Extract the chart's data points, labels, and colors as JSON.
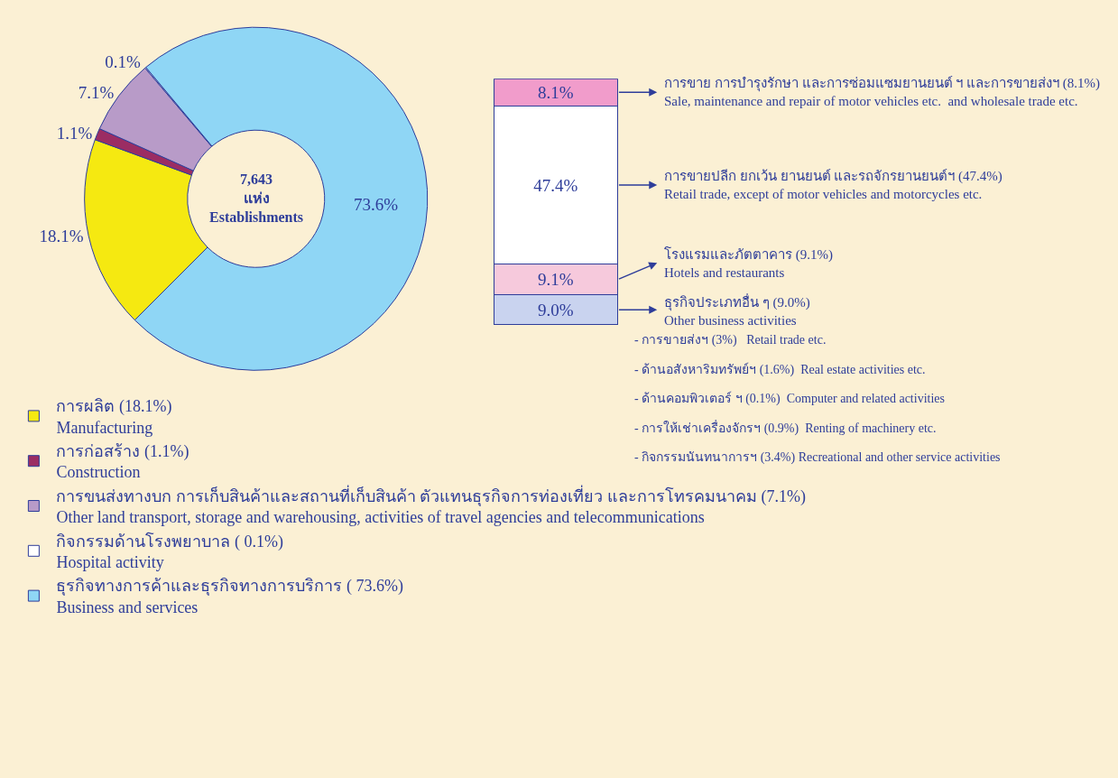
{
  "chart_data": [
    {
      "type": "donut",
      "categories": [
        "การผลิต (18.1%)\nManufacturing",
        "การก่อสร้าง (1.1%)\nConstruction",
        "การขนส่งทางบก การเก็บสินค้าและสถานที่เก็บสินค้า ตัวแทนธุรกิจการท่องเที่ยว และการโทรคมนาคม (7.1%)\nOther land transport, storage and warehousing, activities of travel agencies and telecommunications",
        "กิจกรรมด้านโรงพยาบาล ( 0.1%)\nHospital activity",
        "ธุรกิจทางการค้าและธุรกิจทางการบริการ ( 73.6%)\nBusiness and services"
      ],
      "values": [
        18.1,
        1.1,
        7.1,
        0.1,
        73.6
      ],
      "value_labels": [
        "18.1%",
        "1.1%",
        "7.1%",
        "0.1%",
        "73.6%"
      ],
      "colors": [
        "#f5e911",
        "#9b2d63",
        "#b89bc8",
        "#ffffff",
        "#8fd6f5"
      ],
      "annotations": [
        "7,643\nแห่ง\nEstablishments"
      ],
      "legend": "bottom"
    },
    {
      "type": "bar",
      "stacked": true,
      "categories": [
        null
      ],
      "series": [
        {
          "name": "ธุรกิจประเภทอื่น ๆ (9.0%)\nOther business activities",
          "color": "#c9d3ef",
          "values": [
            9.0
          ],
          "value_labels": [
            "9.0%"
          ]
        },
        {
          "name": "โรงแรมและภัตตาคาร (9.1%)\nHotels and restaurants",
          "color": "#f6c9dc",
          "values": [
            9.1
          ],
          "value_labels": [
            "9.1%"
          ]
        },
        {
          "name": "การขายปลีก ยกเว้น ยานยนต์ และรถจักรยานยนต์ฯ (47.4%)\nRetail trade, except of motor vehicles and motorcycles etc.",
          "color": "#ffffff",
          "values": [
            47.4
          ],
          "value_labels": [
            "47.4%"
          ]
        },
        {
          "name": "การขาย การบำรุงรักษา และการซ่อมแซมยานยนต์ ฯ และการขายส่งฯ (8.1%)\nSale, maintenance and repair of motor vehicles etc.  and wholesale trade etc.",
          "color": "#f19ccb",
          "values": [
            8.1
          ],
          "value_labels": [
            "8.1%"
          ]
        }
      ],
      "legend": "right",
      "annotations": [
        "- การขายส่งฯ (3%)   Retail trade etc.",
        "- ด้านอสังหาริมทรัพย์ฯ (1.6%)  Real estate activities etc.",
        "- ด้านคอมพิวเตอร์ ฯ (0.1%)  Computer and related activities",
        "- การให้เช่าเครื่องจักรฯ (0.9%)  Renting of machinery etc.",
        "- กิจกรรมนันทนาการฯ (3.4%) Recreational and other service activities"
      ]
    }
  ]
}
